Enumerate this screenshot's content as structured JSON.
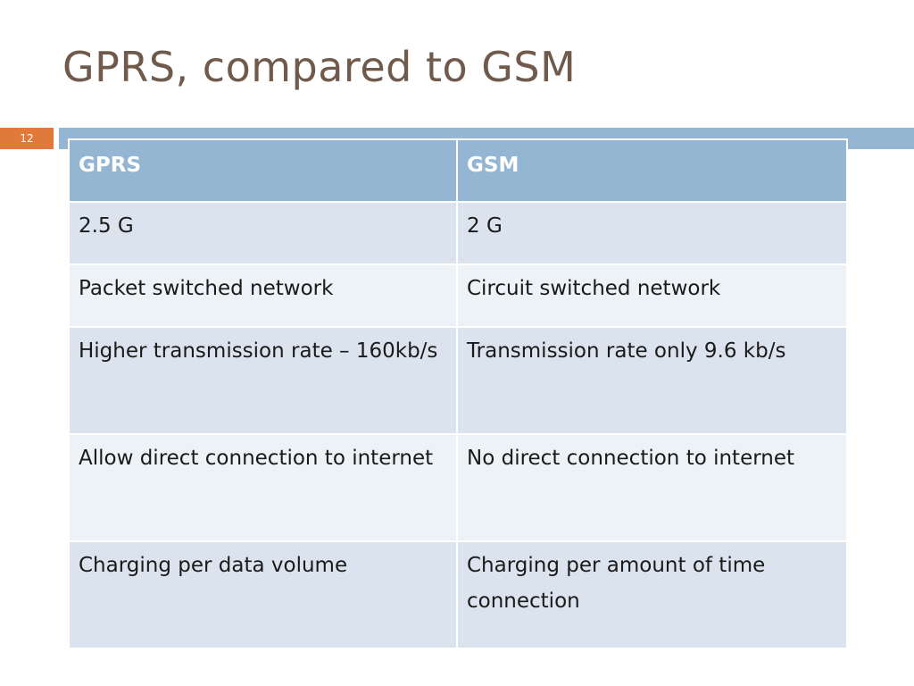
{
  "slide": {
    "title": "GPRS, compared to GSM",
    "number": "12"
  },
  "table": {
    "headers": [
      "GPRS",
      "GSM"
    ],
    "rows": [
      [
        "2.5 G",
        "2 G"
      ],
      [
        "Packet switched network",
        "Circuit switched network"
      ],
      [
        "Higher transmission rate – 160kb/s",
        "Transmission rate only 9.6 kb/s"
      ],
      [
        "Allow direct connection to internet",
        "No direct connection to internet"
      ],
      [
        "Charging per data volume",
        "Charging per amount of time connection"
      ]
    ]
  },
  "colors": {
    "title_text": "#6f5a4b",
    "accent_orange": "#e07a3a",
    "accent_blue": "#94b6d2",
    "row_dark": "#dbe4ee",
    "row_light": "#edf2f7"
  }
}
